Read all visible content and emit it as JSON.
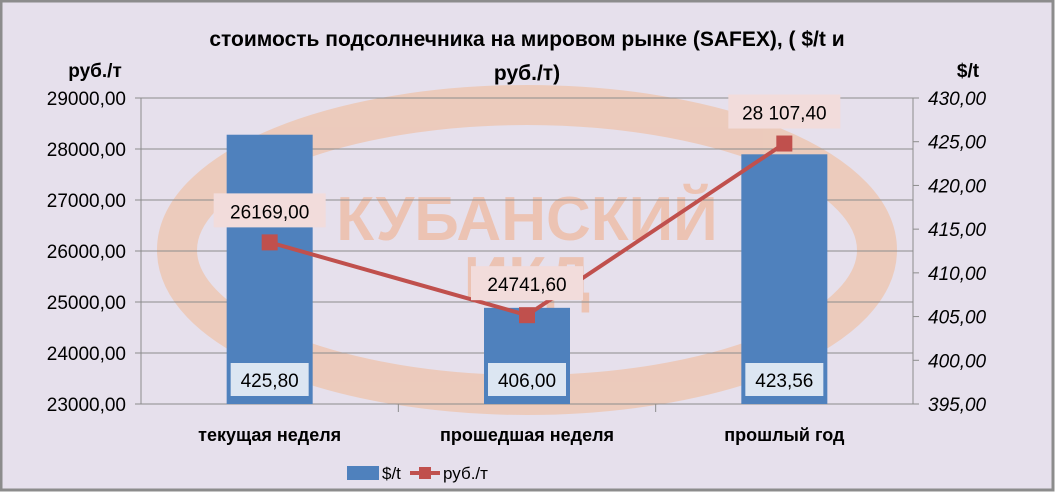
{
  "chart_data": {
    "type": "bar+line",
    "title": "стоимость подсолнечника на мировом рынке (SAFEX), ( $/t и руб./т)",
    "title_lines": [
      "стоимость подсолнечника на мировом рынке (SAFEX), ( $/t и",
      "руб./т)"
    ],
    "categories": [
      "текущая неделя",
      "прошедшая неделя",
      "прошлый год"
    ],
    "y_left": {
      "label": "руб./т",
      "range": [
        23000,
        29000
      ],
      "ticks": [
        "23000,00",
        "24000,00",
        "25000,00",
        "26000,00",
        "27000,00",
        "28000,00",
        "29000,00"
      ]
    },
    "y_right": {
      "label": "$/t",
      "range": [
        395,
        430
      ],
      "ticks": [
        "395,00",
        "400,00",
        "405,00",
        "410,00",
        "415,00",
        "420,00",
        "425,00",
        "430,00"
      ]
    },
    "series": [
      {
        "name": "$/t",
        "kind": "bar",
        "axis": "right",
        "values": [
          425.8,
          406.0,
          423.56
        ],
        "labels": [
          "425,80",
          "406,00",
          "423,56"
        ],
        "color": "#4f81bd"
      },
      {
        "name": "руб./т",
        "kind": "line",
        "axis": "left",
        "values": [
          26169.0,
          24741.6,
          28107.4
        ],
        "labels": [
          "26169,00",
          "24741,60",
          "28 107,40"
        ],
        "color": "#c0504d"
      }
    ],
    "grid": true,
    "legend": "bottom"
  },
  "watermark": {
    "text": [
      "КУБАНСКИЙ",
      "ИКД"
    ],
    "color": "#f4b183"
  },
  "colors": {
    "background": "#e6e0ec",
    "border": "#8c8c8c",
    "bar_label_bg": "#dce6f2",
    "line_label_bg": "#f2dcdb"
  }
}
